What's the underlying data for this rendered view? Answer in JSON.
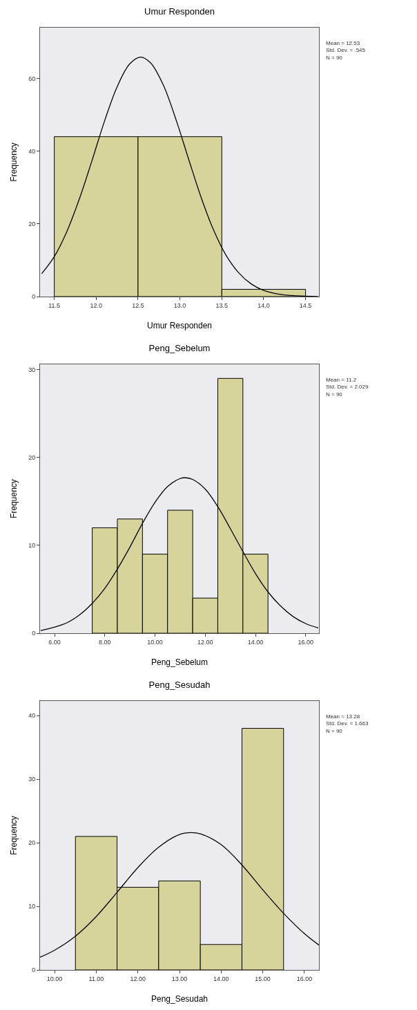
{
  "chart_data": [
    {
      "type": "histogram",
      "title": "Umur Responden",
      "xlabel": "Umur Responden",
      "ylabel": "Frequency",
      "bins": [
        11.5,
        12.5,
        13.5,
        14.5
      ],
      "values": [
        44,
        44,
        2
      ],
      "color": "#d6d49a",
      "series": [
        {
          "type": "line",
          "color": "#000000",
          "x": [
            11.35,
            11.5,
            11.65,
            11.8,
            11.95,
            12.1,
            12.25,
            12.4,
            12.53,
            12.65,
            12.8,
            12.95,
            13.1,
            13.25,
            13.4,
            13.55,
            13.7,
            13.85,
            14.0,
            14.2,
            14.4,
            14.65
          ],
          "values": [
            6.3,
            11.0,
            17.9,
            26.9,
            37.4,
            48.3,
            57.7,
            64.0,
            65.9,
            64.3,
            58.3,
            48.9,
            38.1,
            27.5,
            18.4,
            11.4,
            6.6,
            3.5,
            1.7,
            0.6,
            0.2,
            0.0
          ]
        }
      ],
      "xlim": [
        11.33,
        14.66
      ],
      "xticks": [
        11.5,
        {
          "value": 12,
          "label": "12.0"
        },
        12.5,
        {
          "value": 13,
          "label": "13.0"
        },
        13.5,
        {
          "value": 14,
          "label": "14.0"
        },
        14.5
      ],
      "ylim": [
        0,
        74
      ],
      "yticks": [
        0,
        20,
        40,
        60
      ],
      "grid": false,
      "legend": false,
      "annotations": [
        "Mean = 12.53\nStd. Dev. = .545\nN = 90"
      ]
    },
    {
      "type": "histogram",
      "title": "Peng_Sebelum",
      "xlabel": "Peng_Sebelum",
      "ylabel": "Frequency",
      "bins": [
        7.5,
        8.5,
        9.5,
        10.5,
        11.5,
        12.5,
        13.5,
        14.5
      ],
      "values": [
        12,
        13,
        9,
        14,
        4,
        29,
        9
      ],
      "color": "#d6d49a",
      "series": [
        {
          "type": "line",
          "color": "#000000",
          "x": [
            5.45,
            6,
            6.5,
            7,
            7.5,
            8,
            8.5,
            9,
            9.5,
            10,
            10.5,
            11,
            11.2,
            11.5,
            12,
            12.5,
            13,
            13.5,
            14,
            14.5,
            15,
            15.5,
            16,
            16.5
          ],
          "values": [
            0.3,
            0.7,
            1.2,
            2.1,
            3.4,
            5.1,
            7.3,
            9.8,
            12.5,
            14.9,
            16.7,
            17.6,
            17.7,
            17.5,
            16.4,
            14.4,
            11.9,
            9.3,
            6.8,
            4.7,
            3.1,
            1.9,
            1.1,
            0.6
          ]
        }
      ],
      "xlim": [
        5.42,
        16.53
      ],
      "xticks": [
        {
          "value": 6,
          "label": "6.00"
        },
        {
          "value": 8,
          "label": "8.00"
        },
        {
          "value": 10,
          "label": "10.00"
        },
        {
          "value": 12,
          "label": "12.00"
        },
        {
          "value": 14,
          "label": "14.00"
        },
        {
          "value": 16,
          "label": "16.00"
        }
      ],
      "ylim": [
        0,
        30.6
      ],
      "yticks": [
        0,
        10,
        20,
        30
      ],
      "grid": false,
      "legend": false,
      "annotations": [
        "Mean = 11.2\nStd. Dev. = 2.029\nN = 90"
      ]
    },
    {
      "type": "histogram",
      "title": "Peng_Sesudah",
      "xlabel": "Peng_Sesudah",
      "ylabel": "Frequency",
      "bins": [
        10.5,
        11.5,
        12.5,
        13.5,
        14.5,
        15.5
      ],
      "values": [
        21,
        13,
        14,
        4,
        38
      ],
      "color": "#d6d49a",
      "series": [
        {
          "type": "line",
          "color": "#000000",
          "x": [
            9.65,
            10,
            10.5,
            11,
            11.5,
            12,
            12.5,
            13,
            13.28,
            13.5,
            14,
            14.5,
            15,
            15.5,
            16,
            16.35
          ],
          "values": [
            2.0,
            3.1,
            5.3,
            8.4,
            12.2,
            16.1,
            19.3,
            21.3,
            21.6,
            21.4,
            19.7,
            16.5,
            12.6,
            8.9,
            5.7,
            3.9
          ]
        }
      ],
      "xlim": [
        9.65,
        16.35
      ],
      "xticks": [
        {
          "value": 10,
          "label": "10.00"
        },
        {
          "value": 11,
          "label": "11.00"
        },
        {
          "value": 12,
          "label": "12.00"
        },
        {
          "value": 13,
          "label": "13.00"
        },
        {
          "value": 14,
          "label": "14.00"
        },
        {
          "value": 15,
          "label": "15.00"
        },
        {
          "value": 16,
          "label": "16.00"
        }
      ],
      "ylim": [
        0,
        42.3
      ],
      "yticks": [
        0,
        10,
        20,
        30,
        40
      ],
      "grid": false,
      "legend": false,
      "annotations": [
        "Mean = 13.28\nStd. Dev. = 1.663\nN = 90"
      ]
    }
  ]
}
